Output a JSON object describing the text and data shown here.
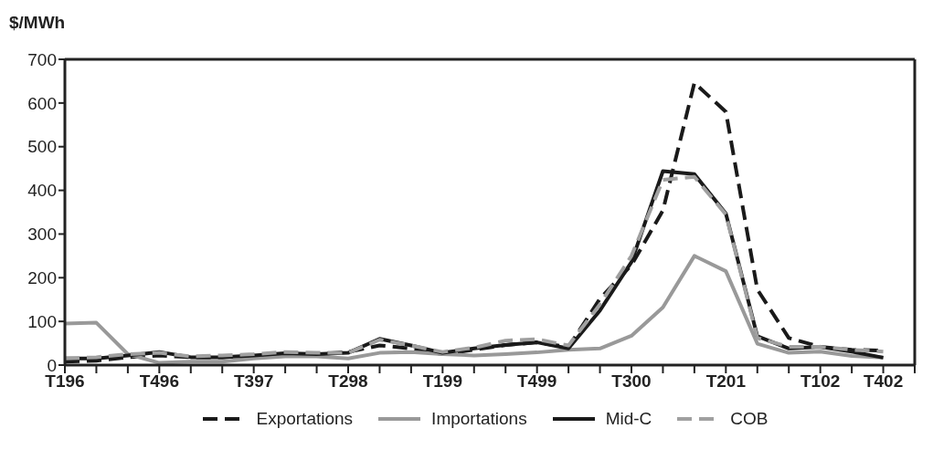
{
  "chart_data": {
    "type": "line",
    "ylabel": "$/MWh",
    "categories": [
      "T196",
      null,
      null,
      "T496",
      null,
      null,
      "T397",
      null,
      null,
      "T298",
      null,
      null,
      "T199",
      null,
      null,
      "T499",
      null,
      null,
      "T300",
      null,
      null,
      "T201",
      null,
      null,
      "T102",
      null,
      "T402",
      null
    ],
    "series": [
      {
        "name": "Exportations",
        "color": "#1a1a1a",
        "line_style": "dashed",
        "values": [
          8,
          10,
          18,
          22,
          18,
          18,
          22,
          25,
          25,
          30,
          45,
          38,
          25,
          35,
          46,
          52,
          41,
          152,
          229,
          354,
          646,
          580,
          173,
          62,
          42,
          35,
          33,
          null
        ]
      },
      {
        "name": "Importations",
        "color": "#999999",
        "line_style": "solid",
        "values": [
          95,
          97,
          25,
          5,
          8,
          8,
          15,
          20,
          20,
          15,
          28,
          30,
          25,
          22,
          25,
          29,
          35,
          38,
          67,
          132,
          250,
          215,
          49,
          28,
          31,
          21,
          17,
          null
        ]
      },
      {
        "name": "Mid-C",
        "color": "#1a1a1a",
        "line_style": "solid",
        "values": [
          15,
          15,
          22,
          30,
          18,
          18,
          22,
          27,
          25,
          28,
          60,
          45,
          28,
          38,
          46,
          52,
          38,
          125,
          236,
          444,
          437,
          347,
          66,
          38,
          42,
          31,
          17,
          null
        ]
      },
      {
        "name": "COB",
        "color": "#a0a0a0",
        "line_style": "dashed",
        "values": [
          15,
          18,
          25,
          28,
          20,
          22,
          25,
          30,
          28,
          28,
          58,
          45,
          30,
          40,
          56,
          59,
          45,
          139,
          250,
          424,
          431,
          345,
          62,
          42,
          42,
          35,
          31,
          null
        ]
      }
    ],
    "ylim": [
      0,
      700
    ],
    "yticks": [
      0,
      100,
      200,
      300,
      400,
      500,
      600,
      700
    ],
    "grid": false,
    "legend": "bottom"
  }
}
